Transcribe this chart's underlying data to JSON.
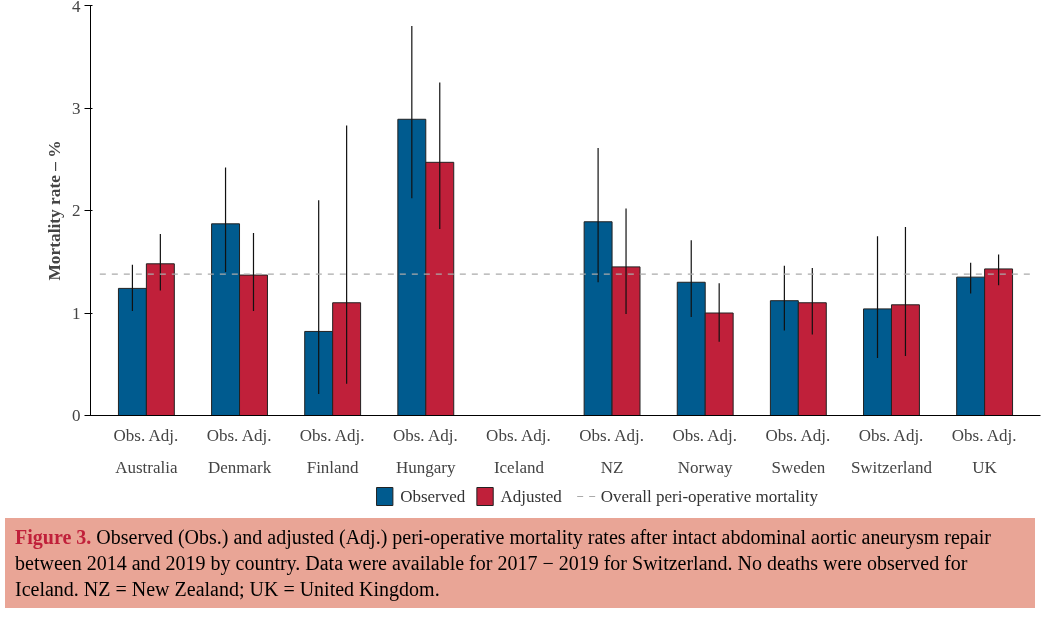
{
  "chart_data": {
    "type": "bar",
    "ylabel": "Mortality rate – %",
    "categories": [
      "Obs. Adj.\nAustralia",
      "Obs. Adj.\nDenmark",
      "Obs. Adj.\nFinland",
      "Obs. Adj.\nHungary",
      "Obs. Adj.\nIceland",
      "Obs. Adj.\nNZ",
      "Obs. Adj.\nNorway",
      "Obs. Adj.\nSweden",
      "Obs. Adj.\nSwitzerland",
      "Obs. Adj.\nUK"
    ],
    "series": [
      {
        "name": "Observed",
        "color": "#005b8f",
        "values": [
          1.24,
          1.87,
          0.82,
          2.89,
          null,
          1.89,
          1.3,
          1.12,
          1.04,
          1.35
        ],
        "errors": [
          [
            1.02,
            1.47
          ],
          [
            1.4,
            2.42
          ],
          [
            0.21,
            2.1
          ],
          [
            2.12,
            3.8
          ],
          null,
          [
            1.3,
            2.61
          ],
          [
            0.96,
            1.71
          ],
          [
            0.83,
            1.46
          ],
          [
            0.56,
            1.75
          ],
          [
            1.19,
            1.49
          ]
        ]
      },
      {
        "name": "Adjusted",
        "color": "#c0203a",
        "values": [
          1.48,
          1.37,
          1.1,
          2.47,
          null,
          1.45,
          1.0,
          1.1,
          1.08,
          1.43
        ],
        "errors": [
          [
            1.22,
            1.77
          ],
          [
            1.02,
            1.78
          ],
          [
            0.31,
            2.83
          ],
          [
            1.82,
            3.25
          ],
          null,
          [
            0.99,
            2.02
          ],
          [
            0.72,
            1.29
          ],
          [
            0.79,
            1.44
          ],
          [
            0.58,
            1.84
          ],
          [
            1.27,
            1.57
          ]
        ]
      }
    ],
    "ylim": [
      0,
      4
    ],
    "yticks": [
      0,
      1,
      2,
      3,
      4
    ],
    "grid": false,
    "legend": "bottom",
    "ref_lines": [
      {
        "axis": "y",
        "value": 1.38,
        "label": "Overall peri-operative mortality",
        "color": "#aaaaaa",
        "line_style": "dashed"
      }
    ],
    "annotations": [
      "Figure 3.",
      "Observed (Obs.) and adjusted (Adj.) peri-operative mortality rates after intact abdominal aortic aneurysm repair between 2014 and 2019 by country. Data were available for 2017 − 2019 for Switzerland. No deaths were observed for Iceland. NZ = New Zealand; UK = United Kingdom."
    ]
  }
}
